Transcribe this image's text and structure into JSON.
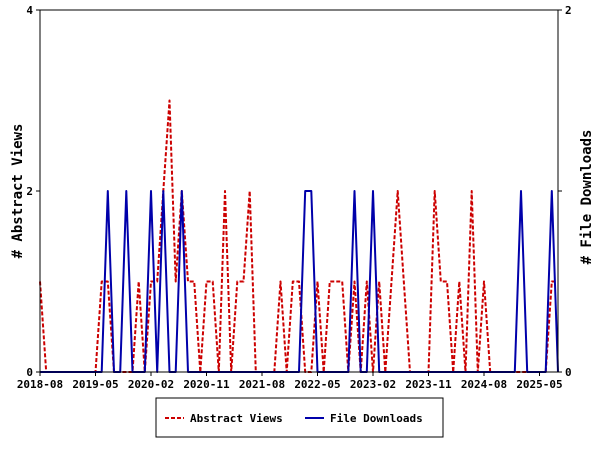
{
  "chart_data": {
    "type": "line",
    "xlabel": "",
    "y_left_label": "# Abstract Views",
    "y_right_label": "# File Downloads",
    "y_left_lim": [
      0,
      4
    ],
    "y_right_lim": [
      0,
      2
    ],
    "y_left_ticks": [
      "0",
      "2",
      "4"
    ],
    "y_right_ticks": [
      "0",
      "1",
      "2"
    ],
    "x_ticks": [
      "2018-08",
      "2019-05",
      "2020-02",
      "2020-11",
      "2021-08",
      "2022-05",
      "2023-02",
      "2023-11",
      "2024-08",
      "2025-05"
    ],
    "x_start_month": "2018-08",
    "months": 85,
    "legend_position": "bottom",
    "grid": false,
    "series": [
      {
        "name": "Abstract Views",
        "axis": "left",
        "color": "#cc0000",
        "dash": "dashed",
        "values": [
          1,
          0,
          0,
          0,
          0,
          0,
          0,
          0,
          0,
          0,
          1,
          1,
          0,
          0,
          0,
          0,
          1,
          0,
          1,
          1,
          2,
          3,
          1,
          2,
          1,
          1,
          0,
          1,
          1,
          0,
          2,
          0,
          1,
          1,
          2,
          0,
          0,
          0,
          0,
          1,
          0,
          1,
          1,
          0,
          0,
          1,
          0,
          1,
          1,
          1,
          0,
          1,
          0,
          1,
          0,
          1,
          0,
          1,
          2,
          1,
          0,
          0,
          0,
          0,
          2,
          1,
          1,
          0,
          1,
          0,
          2,
          0,
          1,
          0,
          0,
          0,
          0,
          0,
          0,
          0,
          0,
          0,
          0,
          1,
          1
        ]
      },
      {
        "name": "File Downloads",
        "axis": "right",
        "color": "#0000aa",
        "dash": "solid",
        "values": [
          0,
          0,
          0,
          0,
          0,
          0,
          0,
          0,
          0,
          0,
          0,
          1,
          0,
          0,
          1,
          0,
          0,
          0,
          1,
          0,
          1,
          0,
          0,
          1,
          0,
          0,
          0,
          0,
          0,
          0,
          0,
          0,
          0,
          0,
          0,
          0,
          0,
          0,
          0,
          0,
          0,
          0,
          0,
          1,
          1,
          0,
          0,
          0,
          0,
          0,
          0,
          1,
          0,
          0,
          1,
          0,
          0,
          0,
          0,
          0,
          0,
          0,
          0,
          0,
          0,
          0,
          0,
          0,
          0,
          0,
          0,
          0,
          0,
          0,
          0,
          0,
          0,
          0,
          1,
          0,
          0,
          0,
          0,
          1,
          0
        ]
      }
    ]
  }
}
